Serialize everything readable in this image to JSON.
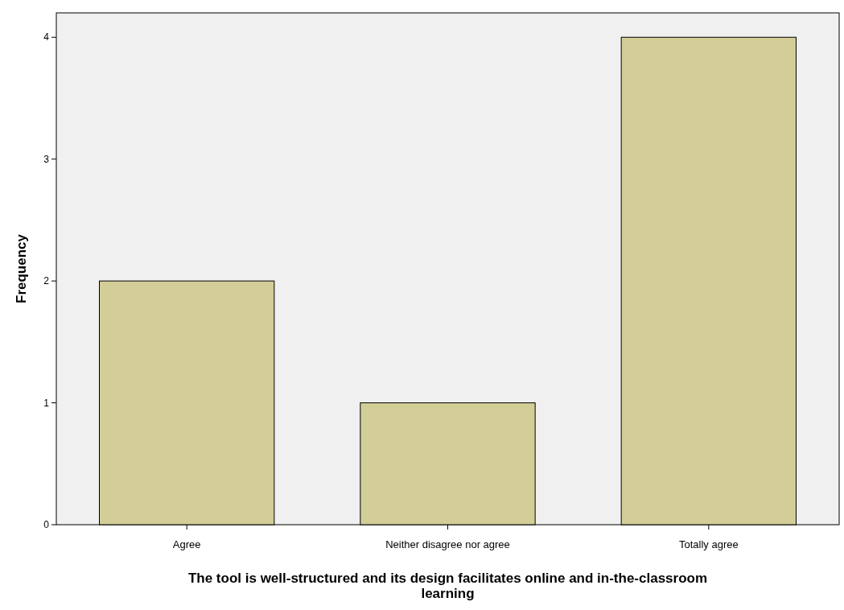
{
  "chart_data": {
    "type": "bar",
    "xlabel": "The tool is well-structured and its design facilitates online and in-the-classroom learning",
    "ylabel": "Frequency",
    "categories": [
      "Agree",
      "Neither disagree nor agree",
      "Totally agree"
    ],
    "values": [
      2,
      1,
      4
    ],
    "color": "#d3ce97",
    "ylim": [
      0,
      4.2
    ],
    "yticks": [
      0,
      1,
      2,
      3,
      4
    ],
    "grid": false
  }
}
